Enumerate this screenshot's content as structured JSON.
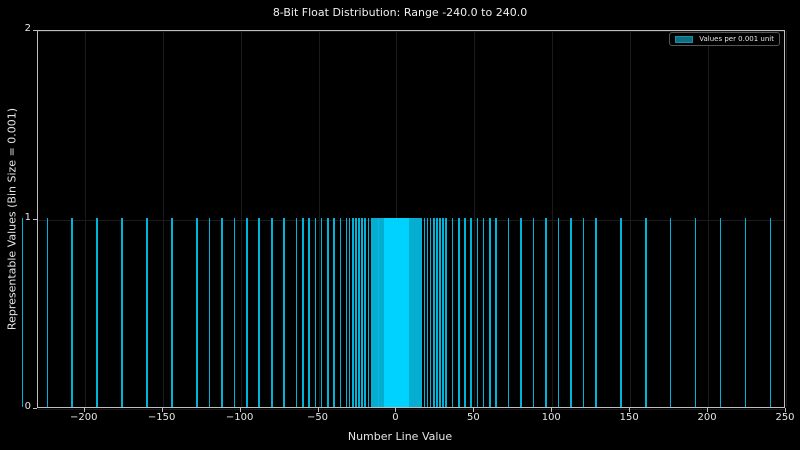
{
  "chart_data": {
    "type": "bar",
    "title": "8-Bit Float Distribution: Range -240.0 to 240.0",
    "xlabel": "Number Line Value",
    "ylabel": "Representable Values (Bin Size = 0.001)",
    "xlim": [
      -230,
      250
    ],
    "ylim": [
      0,
      2
    ],
    "xticks": [
      -200,
      -150,
      -100,
      -50,
      0,
      50,
      100,
      150,
      200,
      250
    ],
    "xtick_labels": [
      "−200",
      "−150",
      "−100",
      "−50",
      "0",
      "50",
      "100",
      "150",
      "200",
      "250"
    ],
    "yticks": [
      0,
      1,
      2
    ],
    "ytick_labels": [
      "0",
      "1",
      "2"
    ],
    "legend": [
      {
        "label": "Values per 0.001 unit",
        "color": "#0e6f82"
      }
    ],
    "legend_position": "upper right",
    "grid": true,
    "bar_color": "#00d2ff",
    "bar_height": 1,
    "value_description": "Each representable 8-bit float value (E4M3, max 240) has count 1 in its 0.001-wide bin",
    "positive_values_above_8": [
      8,
      9,
      10,
      11,
      12,
      13,
      14,
      15,
      16,
      18,
      20,
      22,
      24,
      26,
      28,
      30,
      32,
      36,
      40,
      44,
      48,
      52,
      56,
      60,
      64,
      72,
      80,
      88,
      96,
      104,
      112,
      120,
      128,
      144,
      160,
      176,
      192,
      208,
      224,
      240
    ],
    "dense_region": [
      -8,
      8
    ]
  },
  "legend_label": "Values per 0.001 unit"
}
